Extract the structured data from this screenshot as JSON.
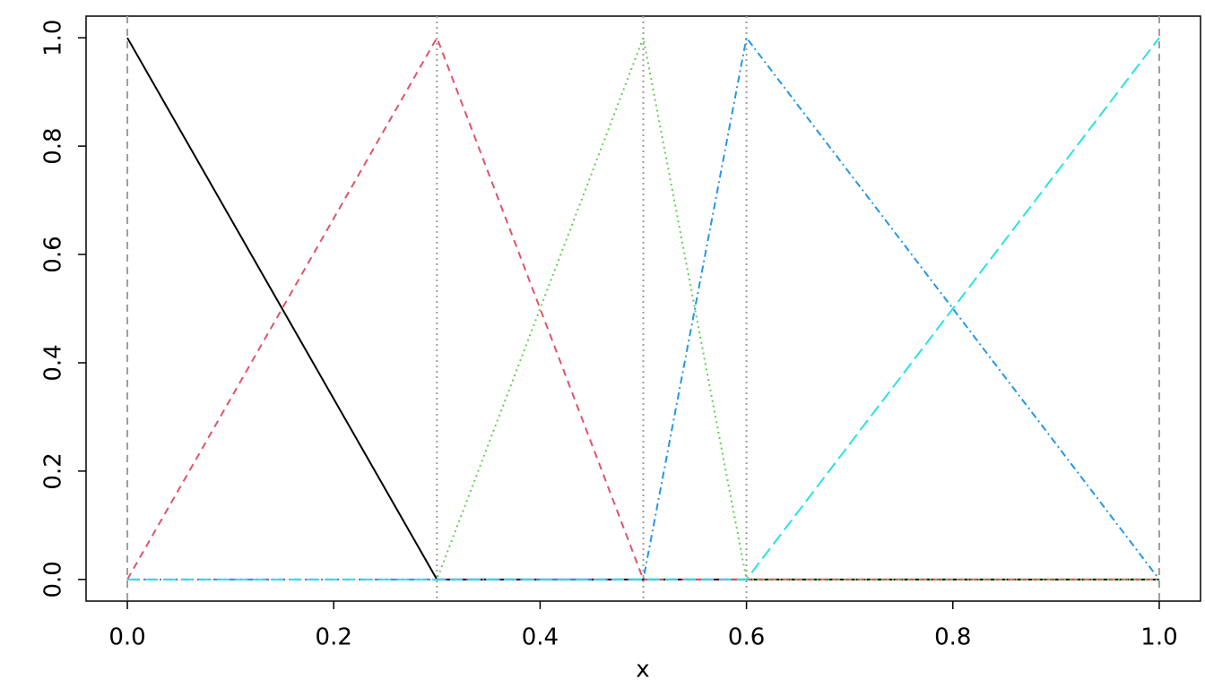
{
  "chart_data": {
    "type": "line",
    "xlabel": "x",
    "x": [
      0,
      0.3,
      0.5,
      0.6,
      1
    ],
    "series": [
      {
        "color": "#000000",
        "linestyle": "solid",
        "values": [
          1,
          0,
          0,
          0,
          0
        ]
      },
      {
        "color": "#DF536B",
        "linestyle": "dashed",
        "values": [
          0,
          1,
          0,
          0,
          0
        ]
      },
      {
        "color": "#61D04F",
        "linestyle": "dotted",
        "values": [
          0,
          0,
          1,
          0,
          0
        ]
      },
      {
        "color": "#2297E6",
        "linestyle": "dotdash",
        "values": [
          0,
          0,
          0,
          1,
          0
        ]
      },
      {
        "color": "#28E2E5",
        "linestyle": "longdash",
        "values": [
          0,
          0,
          0,
          0,
          1
        ]
      }
    ],
    "vlines": [
      0,
      0.3,
      0.5,
      0.6,
      1
    ],
    "vline_styles": [
      "dashed",
      "dotted",
      "dotted",
      "dotted",
      "dashed"
    ],
    "vline_color": "#9e9e9e",
    "xlim": [
      -0.04,
      1.04
    ],
    "ylim": [
      -0.04,
      1.04
    ],
    "xticks": [
      {
        "value": 0,
        "label": "0.0"
      },
      0.2,
      0.4,
      0.6,
      0.8,
      {
        "value": 1,
        "label": "1.0"
      }
    ],
    "yticks": [
      {
        "value": 0,
        "label": "0.0"
      },
      0.2,
      0.4,
      0.6,
      0.8,
      {
        "value": 1,
        "label": "1.0"
      }
    ]
  }
}
